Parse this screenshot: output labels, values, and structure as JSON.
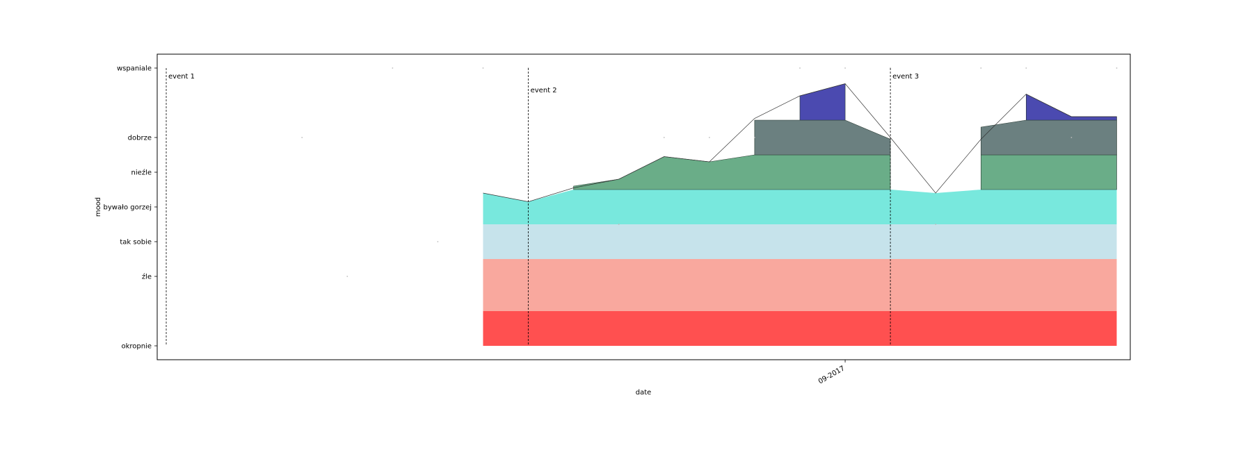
{
  "chart_data": {
    "type": "area",
    "title": "",
    "xlabel": "date",
    "ylabel": "mood",
    "x_tick_labels": [
      "09-2017"
    ],
    "x_range_days": [
      -15.2,
      6.3
    ],
    "x_tick_day": 0,
    "y_levels": [
      {
        "label": "okropnie",
        "value": 1
      },
      {
        "label": "źle",
        "value": 3
      },
      {
        "label": "tak sobie",
        "value": 4
      },
      {
        "label": "bywało gorzej",
        "value": 5
      },
      {
        "label": "nieźle",
        "value": 6
      },
      {
        "label": "dobrze",
        "value": 7
      },
      {
        "label": "wspaniale",
        "value": 9
      }
    ],
    "ylim": [
      0.6,
      9.4
    ],
    "bands": [
      {
        "name": "okropnie",
        "color": "#ff5050",
        "lower": [
          1,
          1,
          1,
          1,
          1,
          1,
          1,
          1,
          1,
          1,
          1,
          1,
          1,
          1,
          1
        ],
        "upper": [
          2,
          2,
          2,
          2,
          2,
          2,
          2,
          2,
          2,
          2,
          2,
          2,
          2,
          2,
          2
        ]
      },
      {
        "name": "źle",
        "color": "#f9a89e",
        "lower": [
          2,
          2,
          2,
          2,
          2,
          2,
          2,
          2,
          2,
          2,
          2,
          2,
          2,
          2,
          2
        ],
        "upper": [
          3.5,
          3.5,
          3.5,
          3.5,
          3.5,
          3.5,
          3.5,
          3.5,
          3.5,
          3.5,
          3.5,
          3.5,
          3.5,
          3.5,
          3.5
        ]
      },
      {
        "name": "tak sobie",
        "color": "#c6e3eb",
        "lower": [
          3.5,
          3.5,
          3.5,
          3.5,
          3.5,
          3.5,
          3.5,
          3.5,
          3.5,
          3.5,
          3.5,
          3.5,
          3.5,
          3.5,
          3.5
        ],
        "upper": [
          4.5,
          4.5,
          4.5,
          4.5,
          4.5,
          4.5,
          4.5,
          4.5,
          4.5,
          4.5,
          4.5,
          4.5,
          4.5,
          4.5,
          4.5
        ]
      },
      {
        "name": "bywało gorzej",
        "color": "#78e8dd",
        "lower": [
          4.5,
          4.5,
          4.5,
          4.5,
          4.5,
          4.5,
          4.5,
          4.5,
          4.5,
          4.5,
          4.5,
          4.5,
          4.5,
          4.5,
          4.5
        ],
        "upper": [
          5.4,
          5.15,
          5.5,
          5.5,
          5.5,
          5.5,
          5.5,
          5.5,
          5.5,
          5.5,
          5.4,
          5.5,
          5.5,
          5.5,
          5.5
        ]
      },
      {
        "name": "nieźle",
        "color": "#6aad88",
        "lower": [
          5.5,
          5.5,
          5.5,
          5.5,
          5.5,
          5.5,
          5.5,
          5.5,
          5.5,
          5.5,
          5.5,
          5.5,
          5.5,
          5.5,
          5.5
        ],
        "upper": [
          null,
          null,
          5.6,
          5.8,
          6.45,
          6.3,
          6.5,
          6.5,
          6.5,
          6.5,
          null,
          6.5,
          6.5,
          6.5,
          6.5
        ]
      },
      {
        "name": "dobrze",
        "color": "#6b8080",
        "lower": [
          6.5,
          6.5,
          6.5,
          6.5,
          6.5,
          6.5,
          6.5,
          6.5,
          6.5,
          6.5,
          6.5,
          6.5,
          6.5,
          6.5,
          6.5
        ],
        "upper": [
          null,
          null,
          null,
          null,
          null,
          null,
          7.5,
          7.5,
          7.5,
          6.95,
          null,
          7.3,
          7.5,
          7.5,
          7.5
        ]
      },
      {
        "name": "wspaniale",
        "color": "#4b4ab0",
        "lower": [
          7.5,
          7.5,
          7.5,
          7.5,
          7.5,
          7.5,
          7.5,
          7.5,
          7.5,
          7.5,
          7.5,
          7.5,
          7.5,
          7.5,
          7.5
        ],
        "upper": [
          null,
          null,
          null,
          null,
          null,
          null,
          null,
          8.2,
          8.55,
          null,
          null,
          null,
          8.25,
          7.6,
          7.6
        ]
      }
    ],
    "x_days": [
      -8,
      -7,
      -6,
      -5,
      -4,
      -3,
      -2,
      -1,
      0,
      1,
      2,
      3,
      4,
      5,
      6
    ],
    "series": [
      {
        "x": [
          -8,
          -7,
          -6,
          -5,
          -4,
          -3,
          -2,
          -1,
          0,
          1,
          2,
          3,
          4,
          5,
          6
        ],
        "y": [
          5.4,
          5.15,
          5.55,
          5.8,
          6.45,
          6.3,
          7.55,
          8.2,
          8.55,
          7.0,
          5.4,
          6.95,
          8.25,
          7.6,
          7.6
        ]
      }
    ],
    "scatter_points": [
      {
        "x": -12,
        "y": 7
      },
      {
        "x": -11,
        "y": 3
      },
      {
        "x": -10,
        "y": 9
      },
      {
        "x": -9,
        "y": 4
      },
      {
        "x": -8,
        "y": 9
      },
      {
        "x": -7,
        "y": 9
      },
      {
        "x": -5,
        "y": 4.5
      },
      {
        "x": -4,
        "y": 7
      },
      {
        "x": -3,
        "y": 7
      },
      {
        "x": -2,
        "y": 7
      },
      {
        "x": -1,
        "y": 9
      },
      {
        "x": 0,
        "y": 9
      },
      {
        "x": 1,
        "y": 9
      },
      {
        "x": 2,
        "y": 4.5
      },
      {
        "x": 3,
        "y": 9
      },
      {
        "x": 4,
        "y": 9
      },
      {
        "x": 5,
        "y": 7
      },
      {
        "x": 6,
        "y": 9
      }
    ],
    "events": [
      {
        "label": "event 1",
        "x": -15.0
      },
      {
        "label": "event 2",
        "x": -7.0
      },
      {
        "label": "event 3",
        "x": 1.0
      }
    ],
    "grid": false,
    "legend": "none"
  }
}
